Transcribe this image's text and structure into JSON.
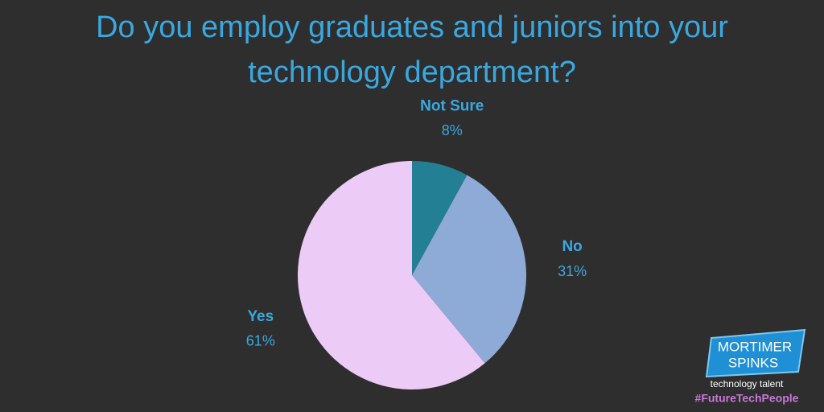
{
  "chart_data": {
    "type": "pie",
    "title": "Do you employ graduates and juniors into your technology department?",
    "categories": [
      "Not Sure",
      "No",
      "Yes"
    ],
    "values": [
      8,
      31,
      61
    ],
    "value_labels": [
      "8%",
      "31%",
      "61%"
    ],
    "colors": [
      "#237f94",
      "#8eaad6",
      "#eccbf7"
    ]
  },
  "logo": {
    "name_line1": "MORTIMER",
    "name_line2": "SPINKS",
    "tagline": "technology talent",
    "hashtag": "#FutureTechPeople"
  }
}
